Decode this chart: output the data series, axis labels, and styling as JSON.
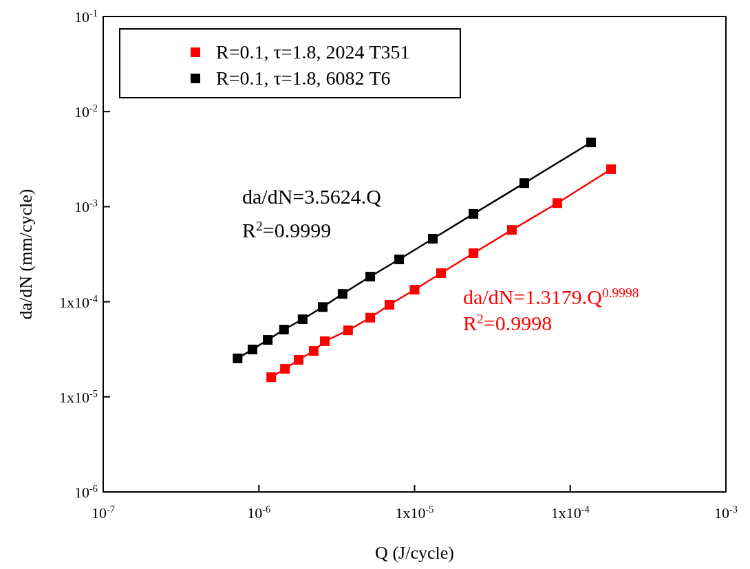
{
  "chart_data": {
    "type": "line",
    "xlabel": "Q (J/cycle)",
    "ylabel": "da/dN (mm/cycle)",
    "log": "xy",
    "marker": "square",
    "line_style": "solid",
    "legend": "top left",
    "grid": false,
    "xlim": [
      1e-07,
      0.001
    ],
    "xticks": [
      {
        "value": 1e-07,
        "label": "10$^{-7}$"
      },
      {
        "value": 1e-06,
        "label": "10$^{-6}$"
      },
      {
        "value": 1e-05,
        "label": "1x10$^{-5}$"
      },
      {
        "value": 0.0001,
        "label": "1x10$^{-4}$"
      },
      {
        "value": 0.001,
        "label": "10$^{-3}$"
      }
    ],
    "ylim": [
      1e-06,
      0.1
    ],
    "yticks": [
      {
        "value": 1e-06,
        "label": "10$^{-6}$"
      },
      {
        "value": 1e-05,
        "label": "1x10$^{-5}$"
      },
      {
        "value": 0.0001,
        "label": "1x10$^{-4}$"
      },
      {
        "value": 0.001,
        "label": "10$^{-3}$"
      },
      {
        "value": 0.01,
        "label": "10$^{-2}$"
      },
      {
        "value": 0.1,
        "label": "10$^{-1}$"
      }
    ],
    "series": [
      {
        "name": "R=0.1, τ=1.8, 2024 T351",
        "color": "#ff0000",
        "x": [
          1.2e-06,
          1.47e-06,
          1.8e-06,
          2.25e-06,
          2.65e-06,
          3.74e-06,
          5.19e-06,
          6.9e-06,
          1e-05,
          1.48e-05,
          2.39e-05,
          4.22e-05,
          8.26e-05,
          0.000183
        ],
        "values": [
          1.61e-05,
          1.97e-05,
          2.45e-05,
          3.04e-05,
          3.85e-05,
          5e-05,
          6.8e-05,
          9.3e-05,
          0.000134,
          0.0002,
          0.000324,
          0.00057,
          0.00109,
          0.00248
        ]
      },
      {
        "name": "R=0.1, τ=1.8, 6082 T6",
        "color": "#000000",
        "x": [
          7.3e-07,
          9.1e-07,
          1.14e-06,
          1.45e-06,
          1.91e-06,
          2.57e-06,
          3.45e-06,
          5.19e-06,
          7.96e-06,
          1.31e-05,
          2.39e-05,
          5.07e-05,
          0.000136
        ],
        "values": [
          2.54e-05,
          3.15e-05,
          3.97e-05,
          5.1e-05,
          6.55e-05,
          8.8e-05,
          0.000121,
          0.000184,
          0.000279,
          0.00046,
          0.00084,
          0.00177,
          0.00474
        ]
      }
    ],
    "annotations": [
      "da/dN=1.3179.Q$^{0.9998}$",
      "R$^{2}$=0.9998",
      "da/dN=3.5624.Q",
      "R$^{2}$=0.9999"
    ]
  }
}
